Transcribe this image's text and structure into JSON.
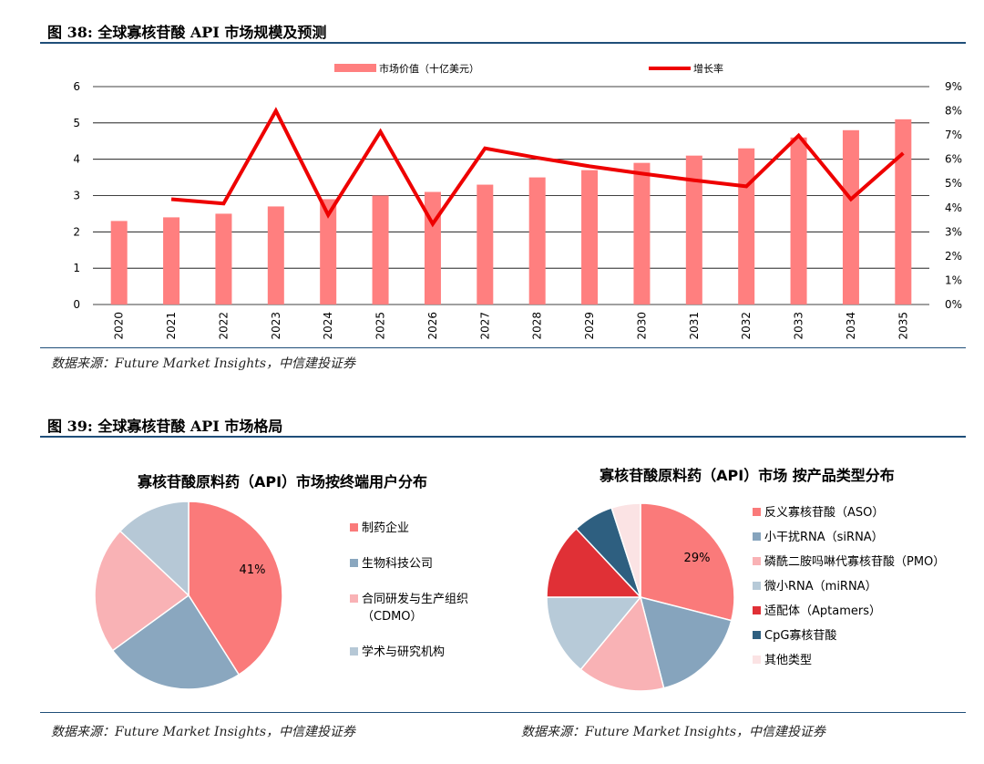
{
  "fig38": {
    "title": "图 38: 全球寡核苷酸 API 市场规模及预测",
    "source": "数据来源：Future Market Insights，中信建投证券"
  },
  "fig39": {
    "title": "图 39: 全球寡核苷酸 API 市场格局",
    "source_left": "数据来源：Future Market Insights，中信建投证券",
    "source_right": "数据来源：Future Market Insights，中信建投证券"
  },
  "chart_data": [
    {
      "type": "bar",
      "categories": [
        "2020",
        "2021",
        "2022",
        "2023",
        "2024",
        "2025",
        "2026",
        "2027",
        "2028",
        "2029",
        "2030",
        "2031",
        "2032",
        "2033",
        "2034",
        "2035"
      ],
      "series": [
        {
          "name": "市场价值（十亿美元）",
          "type": "bar",
          "axis": "left",
          "color": "#ff7f7f",
          "values": [
            2.3,
            2.4,
            2.5,
            2.7,
            2.9,
            3.0,
            3.1,
            3.3,
            3.5,
            3.7,
            3.9,
            4.1,
            4.3,
            4.6,
            4.8,
            5.1
          ]
        },
        {
          "name": "增长率",
          "type": "line",
          "axis": "right",
          "color": "#ee0000",
          "values": [
            null,
            4.35,
            4.17,
            8.0,
            3.7,
            7.14,
            3.33,
            6.45,
            6.06,
            5.71,
            5.41,
            5.13,
            4.88,
            6.98,
            4.35,
            6.25
          ]
        }
      ],
      "ylim": [
        0,
        6
      ],
      "yticks": [
        "0",
        "1",
        "2",
        "3",
        "4",
        "5",
        "6"
      ],
      "y2lim": [
        0,
        9
      ],
      "y2ticks": [
        "0%",
        "1%",
        "2%",
        "3%",
        "4%",
        "5%",
        "6%",
        "7%",
        "8%",
        "9%"
      ],
      "legend_position": "top",
      "grid": true
    },
    {
      "type": "pie",
      "title": "寡核苷酸原料药（API）市场按终端用户分布",
      "labels": [
        "制药企业",
        "生物科技公司",
        "合同研发与生产组织（CDMO）",
        "学术与研究机构"
      ],
      "legend_lines": [
        [
          "制药企业"
        ],
        [
          "生物科技公司"
        ],
        [
          "合同研发与生产组织",
          "（CDMO）"
        ],
        [
          "学术与研究机构"
        ]
      ],
      "values": [
        41,
        24,
        22,
        13
      ],
      "data_labels": [
        "41%",
        "",
        "",
        ""
      ],
      "colors": [
        "#fa7a7a",
        "#8aa7bf",
        "#f9b2b5",
        "#b6c8d6"
      ]
    },
    {
      "type": "pie",
      "title": "寡核苷酸原料药（API）市场 按产品类型分布",
      "labels": [
        "反义寡核苷酸（ASO）",
        "小干扰RNA（siRNA）",
        "磷酰二胺吗啉代寡核苷酸（PMO）",
        "微小RNA（miRNA）",
        "适配体（Aptamers）",
        "CpG寡核苷酸",
        "其他类型"
      ],
      "values": [
        29,
        17,
        15,
        14,
        13,
        7,
        5
      ],
      "data_labels": [
        "29%",
        "",
        "",
        "",
        "",
        "",
        ""
      ],
      "colors": [
        "#fa7a7a",
        "#86a4bd",
        "#f9b2b5",
        "#b7cad8",
        "#e03036",
        "#2e5f80",
        "#fbe3e4"
      ]
    }
  ]
}
